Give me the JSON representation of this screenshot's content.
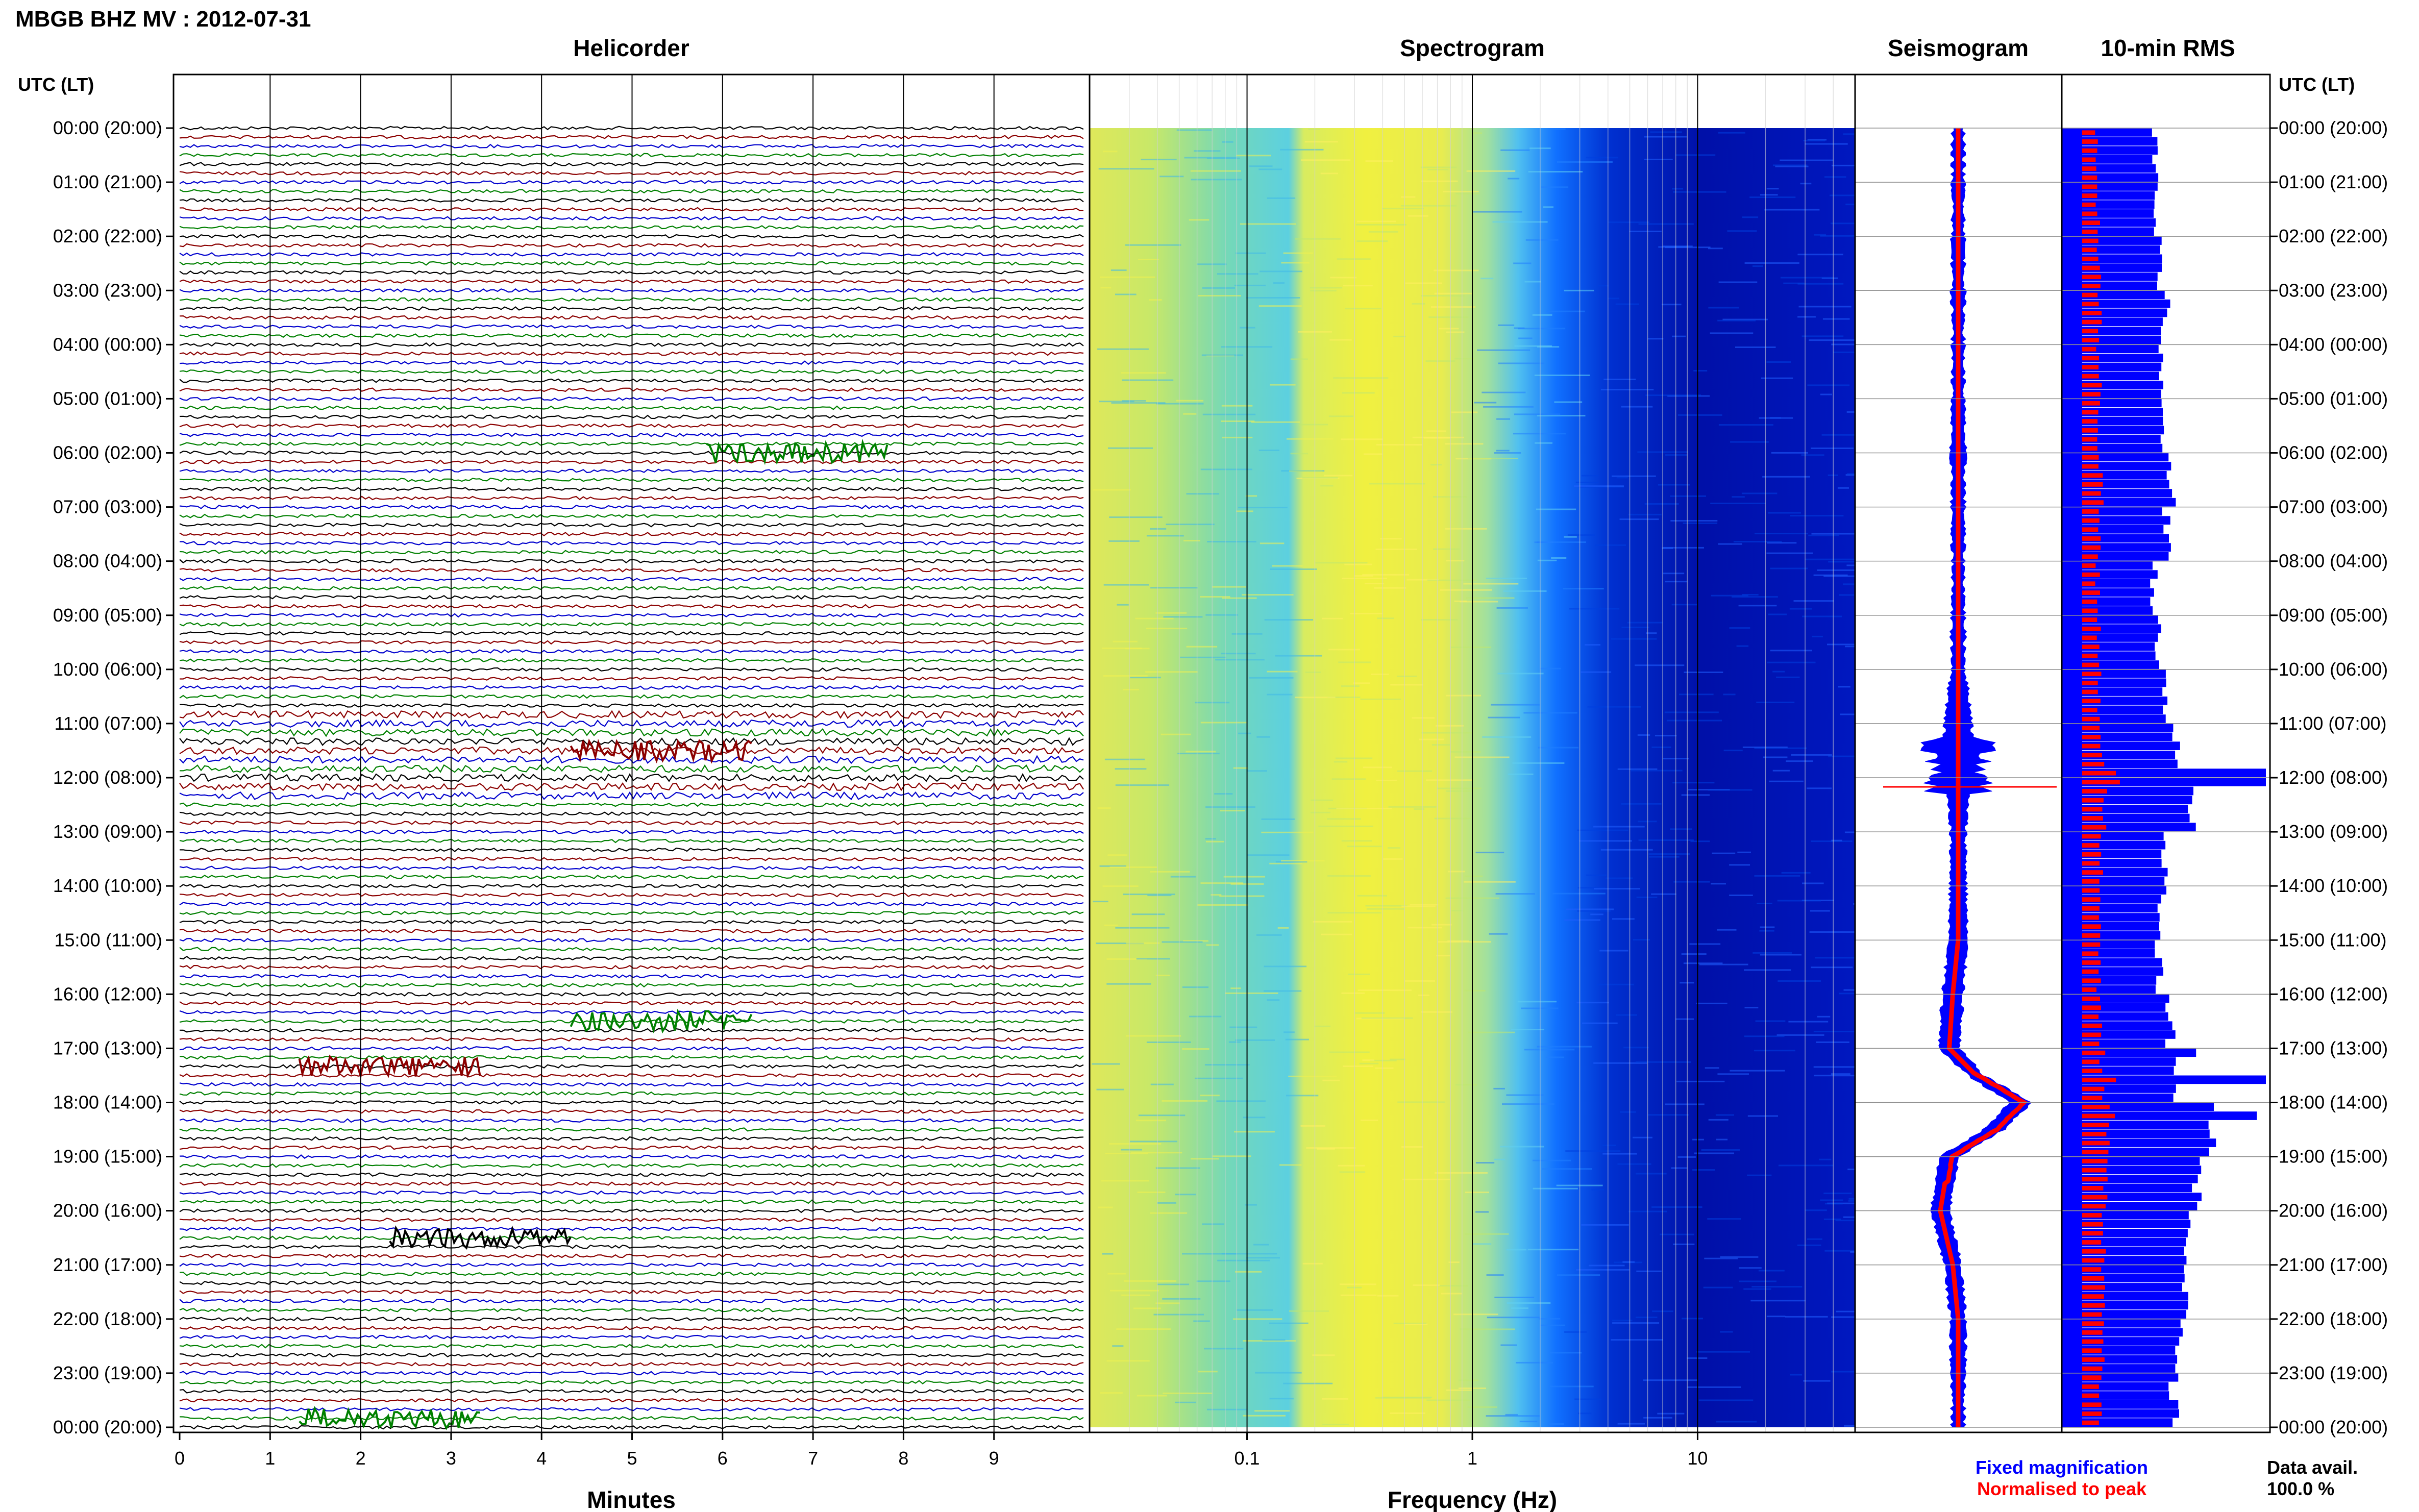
{
  "figure_title": "MBGB BHZ MV : 2012-07-31",
  "panels": {
    "helicorder": "Helicorder",
    "spectrogram": "Spectrogram",
    "seismogram": "Seismogram",
    "rms": "10-min RMS"
  },
  "axis_headers": {
    "left": "UTC (LT)",
    "right": "UTC (LT)"
  },
  "time_labels": [
    "00:00 (20:00)",
    "01:00 (21:00)",
    "02:00 (22:00)",
    "03:00 (23:00)",
    "04:00 (00:00)",
    "05:00 (01:00)",
    "06:00 (02:00)",
    "07:00 (03:00)",
    "08:00 (04:00)",
    "09:00 (05:00)",
    "10:00 (06:00)",
    "11:00 (07:00)",
    "12:00 (08:00)",
    "13:00 (09:00)",
    "14:00 (10:00)",
    "15:00 (11:00)",
    "16:00 (12:00)",
    "17:00 (13:00)",
    "18:00 (14:00)",
    "19:00 (15:00)",
    "20:00 (16:00)",
    "21:00 (17:00)",
    "22:00 (18:00)",
    "23:00 (19:00)",
    "00:00 (20:00)"
  ],
  "helicorder_xlabel": "Minutes",
  "minute_ticks": [
    "0",
    "1",
    "2",
    "3",
    "4",
    "5",
    "6",
    "7",
    "8",
    "9"
  ],
  "spectrogram_xlabel": "Frequency (Hz)",
  "freq_ticks": [
    "0.1",
    "1",
    "10"
  ],
  "legend": {
    "fixed": "Fixed magnification",
    "normalised": "Normalised to peak",
    "fixed_color": "#0000ff",
    "normalised_color": "#ff0000"
  },
  "data_avail_label": "Data avail.",
  "data_avail_value": "100.0 %",
  "trace_colors": [
    "#000000",
    "#8b0000",
    "#0000cd",
    "#008000"
  ],
  "chart_data": [
    {
      "type": "line",
      "title": "Helicorder",
      "xlabel": "Minutes",
      "xlim": [
        0,
        10
      ],
      "rows_per_hour": 6,
      "hours": 24,
      "events": [
        {
          "time": "06:00",
          "minute": 6.5,
          "series": "green"
        },
        {
          "time": "11:30-12:10",
          "minute": 5.0,
          "series": "mixed"
        },
        {
          "time": "16:30",
          "minute": 5.0,
          "series": "green"
        },
        {
          "time": "17:20",
          "minute": 2.0,
          "series": "mixed"
        },
        {
          "time": "20:30",
          "minute": 3.0,
          "series": "black"
        },
        {
          "time": "23:50",
          "minute": 2.0,
          "series": "green"
        }
      ]
    },
    {
      "type": "heatmap",
      "title": "Spectrogram",
      "xlabel": "Frequency (Hz)",
      "x_scale": "log",
      "xlim": [
        0.02,
        50
      ],
      "colormap": [
        "#0000a0",
        "#0070ff",
        "#40c0ff",
        "#80e0c0",
        "#e0f060",
        "#f0f040",
        "#e0e860"
      ]
    },
    {
      "type": "line",
      "title": "Seismogram",
      "series": [
        {
          "name": "Fixed magnification",
          "color": "#0000ff"
        },
        {
          "name": "Normalised to peak",
          "color": "#ff0000"
        }
      ],
      "hours": [
        0,
        1,
        2,
        3,
        4,
        5,
        6,
        7,
        8,
        9,
        10,
        11,
        12,
        13,
        14,
        15,
        16,
        17,
        17.5,
        18,
        18.5,
        19,
        20,
        21,
        22,
        23,
        24
      ],
      "fixed_halfwidth": [
        0.6,
        0.6,
        0.7,
        0.7,
        0.6,
        0.6,
        0.8,
        0.7,
        0.6,
        0.7,
        0.8,
        2.0,
        1.5,
        0.9,
        1.0,
        1.1,
        1.4,
        1.2,
        1.0,
        1.4,
        1.3,
        1.2,
        1.1,
        1.0,
        0.9,
        0.8,
        0.6
      ],
      "center_offset": [
        0,
        0,
        0,
        0,
        0,
        0,
        0,
        0,
        0,
        0,
        0,
        0,
        0,
        0,
        0,
        0,
        -0.3,
        -0.5,
        1.0,
        3.5,
        2.0,
        -0.5,
        -1.0,
        -0.3,
        0,
        0,
        0
      ]
    },
    {
      "type": "bar",
      "title": "10-min RMS",
      "orientation": "horizontal",
      "rows": 144,
      "series": [
        {
          "name": "Fixed magnification",
          "color": "#0000ff"
        },
        {
          "name": "Normalised to peak",
          "color": "#ff0000"
        }
      ],
      "hourly_level": [
        0.4,
        0.4,
        0.42,
        0.45,
        0.42,
        0.44,
        0.48,
        0.46,
        0.4,
        0.42,
        0.44,
        0.52,
        0.6,
        0.46,
        0.44,
        0.42,
        0.48,
        0.52,
        0.7,
        0.62,
        0.58,
        0.56,
        0.52,
        0.5
      ],
      "peaks": [
        {
          "time": "11:50",
          "value": 1.0
        },
        {
          "time": "12:00",
          "value": 1.0
        },
        {
          "time": "17:00",
          "value": 0.62
        },
        {
          "time": "17:30",
          "value": 1.0
        },
        {
          "time": "18:10",
          "value": 0.95
        }
      ]
    }
  ]
}
